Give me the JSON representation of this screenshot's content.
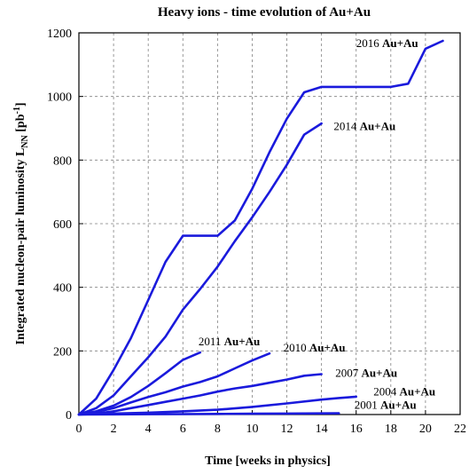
{
  "chart_data": {
    "type": "line",
    "title": "Heavy ions - time evolution of Au+Au",
    "xlabel": "Time  [weeks in physics]",
    "ylabel_main": "Integrated nucleon-pair luminosity L",
    "ylabel_sub": "NN",
    "ylabel_unit": " [pb",
    "ylabel_sup": "-1",
    "ylabel_end": "]",
    "xlim": [
      0,
      22
    ],
    "ylim": [
      0,
      1200
    ],
    "xticks": [
      0,
      2,
      4,
      6,
      8,
      10,
      12,
      14,
      16,
      18,
      20,
      22
    ],
    "yticks": [
      0,
      200,
      400,
      600,
      800,
      1000,
      1200
    ],
    "grid": true,
    "line_color": "#1a1adc",
    "series": [
      {
        "name": "2016 Au+Au",
        "year": "2016",
        "species": "Au+Au",
        "label_at": [
          16,
          1155
        ],
        "x": [
          0,
          1,
          2,
          3,
          4,
          5,
          6,
          7,
          8,
          9,
          10,
          11,
          12,
          13,
          14,
          15,
          16,
          17,
          18,
          19,
          20,
          21
        ],
        "y": [
          0,
          50,
          140,
          240,
          360,
          480,
          562,
          562,
          562,
          610,
          710,
          825,
          930,
          1013,
          1030,
          1030,
          1030,
          1030,
          1030,
          1040,
          1150,
          1175
        ]
      },
      {
        "name": "2014 Au+Au",
        "year": "2014",
        "species": "Au+Au",
        "label_at": [
          14.7,
          895
        ],
        "x": [
          0,
          1,
          2,
          3,
          4,
          5,
          6,
          7,
          8,
          9,
          10,
          11,
          12,
          13,
          14
        ],
        "y": [
          0,
          20,
          60,
          120,
          180,
          245,
          330,
          395,
          465,
          545,
          620,
          700,
          785,
          880,
          915
        ]
      },
      {
        "name": "2011 Au+Au",
        "year": "2011",
        "species": "Au+Au",
        "label_at": [
          6.9,
          218
        ],
        "x": [
          0,
          1,
          2,
          3,
          4,
          5,
          6,
          7
        ],
        "y": [
          0,
          10,
          28,
          55,
          90,
          130,
          172,
          195
        ]
      },
      {
        "name": "2010 Au+Au",
        "year": "2010",
        "species": "Au+Au",
        "label_at": [
          11.8,
          198
        ],
        "x": [
          0,
          1,
          2,
          3,
          4,
          5,
          6,
          7,
          8,
          9,
          10,
          11
        ],
        "y": [
          0,
          8,
          20,
          38,
          55,
          70,
          88,
          102,
          120,
          145,
          170,
          192
        ]
      },
      {
        "name": "2007 Au+Au",
        "year": "2007",
        "species": "Au+Au",
        "label_at": [
          14.8,
          118
        ],
        "x": [
          0,
          1,
          2,
          3,
          4,
          5,
          6,
          7,
          8,
          9,
          10,
          11,
          12,
          13,
          14
        ],
        "y": [
          0,
          3,
          10,
          20,
          30,
          40,
          50,
          60,
          72,
          82,
          90,
          100,
          110,
          122,
          127
        ]
      },
      {
        "name": "2004 Au+Au",
        "year": "2004",
        "species": "Au+Au",
        "label_at": [
          17,
          60
        ],
        "x": [
          0,
          2,
          4,
          6,
          8,
          10,
          12,
          14,
          15,
          16
        ],
        "y": [
          0,
          3,
          6,
          10,
          15,
          24,
          35,
          47,
          52,
          56
        ]
      },
      {
        "name": "2001 Au+Au",
        "year": "2001",
        "species": "Au+Au",
        "label_at": [
          15.9,
          18
        ],
        "x": [
          0,
          2,
          4,
          6,
          8,
          10,
          12,
          14,
          15
        ],
        "y": [
          0,
          0.5,
          1,
          1.5,
          2,
          2.5,
          3,
          3.5,
          4
        ]
      }
    ]
  }
}
